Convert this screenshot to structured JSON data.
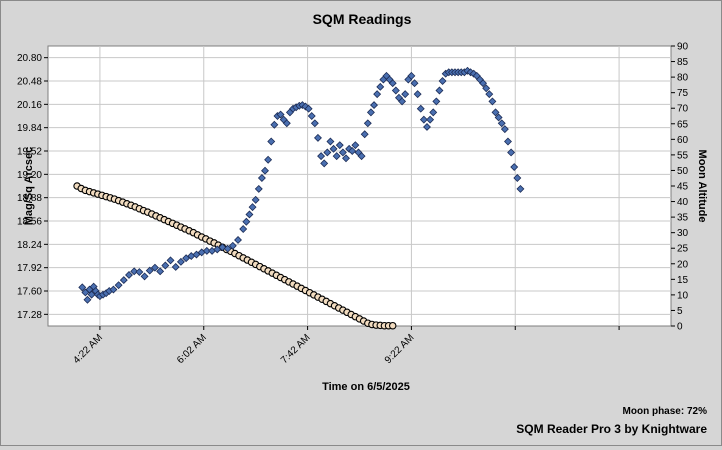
{
  "chart_data": {
    "type": "scatter",
    "title": "SQM Readings",
    "xlabel": "Time on 6/5/2025",
    "ylabel": "Mag/Sq Arcsec",
    "y2label": "Moon Altitude",
    "moon_phase_text": "Moon phase: 72%",
    "credit_text": "SQM Reader Pro 3 by Knightware",
    "x_ticks": [
      "4:22 AM",
      "6:02 AM",
      "7:42 AM",
      "9:22 AM",
      "",
      "",
      "",
      ""
    ],
    "y_ticks": [
      "17.28",
      "17.60",
      "17.92",
      "18.24",
      "18.56",
      "18.88",
      "19.20",
      "19.52",
      "19.84",
      "20.16",
      "20.48",
      "20.80"
    ],
    "y_range": [
      17.12,
      20.96
    ],
    "y2_ticks": [
      "0",
      "5",
      "10",
      "15",
      "20",
      "25",
      "30",
      "35",
      "40",
      "45",
      "50",
      "55",
      "60",
      "65",
      "70",
      "75",
      "80",
      "85",
      "90"
    ],
    "y2_range": [
      0,
      90
    ],
    "x_range_minutes": [
      212,
      812
    ],
    "grid": true,
    "series": [
      {
        "name": "",
        "axis": "left",
        "marker": "diamond",
        "color": "#4a6fb0",
        "x": [
          245,
          248,
          250,
          252,
          254,
          256,
          258,
          260,
          262,
          265,
          268,
          271,
          275,
          280,
          285,
          290,
          295,
          300,
          305,
          310,
          315,
          320,
          325,
          330,
          335,
          340,
          345,
          350,
          355,
          360,
          365,
          370,
          375,
          380,
          385,
          390,
          395,
          400,
          403,
          406,
          409,
          412,
          415,
          418,
          421,
          424,
          427,
          430,
          433,
          436,
          439,
          442,
          445,
          448,
          451,
          454,
          457,
          460,
          463,
          466,
          469,
          472,
          475,
          478,
          481,
          484,
          487,
          490,
          493,
          496,
          499,
          502,
          505,
          508,
          511,
          514,
          517,
          520,
          523,
          526,
          529,
          532,
          535,
          538,
          541,
          544,
          547,
          550,
          553,
          556,
          559,
          562,
          565,
          568,
          571,
          574,
          577,
          580,
          583,
          586,
          589,
          592,
          595,
          598,
          601,
          604,
          607,
          610,
          613,
          616,
          619,
          622,
          625,
          628,
          631,
          634,
          637,
          640,
          643,
          646,
          649,
          652,
          655,
          658,
          661,
          664,
          667
        ],
        "y": [
          17.65,
          17.58,
          17.48,
          17.62,
          17.55,
          17.66,
          17.6,
          17.55,
          17.53,
          17.55,
          17.57,
          17.6,
          17.62,
          17.68,
          17.75,
          17.82,
          17.87,
          17.86,
          17.8,
          17.88,
          17.92,
          17.87,
          17.95,
          18.02,
          17.93,
          18.0,
          18.05,
          18.08,
          18.1,
          18.13,
          18.15,
          18.15,
          18.17,
          18.2,
          18.18,
          18.22,
          18.3,
          18.45,
          18.55,
          18.65,
          18.75,
          18.85,
          19.0,
          19.15,
          19.25,
          19.4,
          19.65,
          19.88,
          20.0,
          20.02,
          19.95,
          19.9,
          20.05,
          20.1,
          20.12,
          20.14,
          20.15,
          20.13,
          20.1,
          20.0,
          19.9,
          19.7,
          19.45,
          19.35,
          19.5,
          19.65,
          19.55,
          19.45,
          19.6,
          19.5,
          19.42,
          19.55,
          19.52,
          19.6,
          19.5,
          19.45,
          19.75,
          19.9,
          20.05,
          20.15,
          20.3,
          20.4,
          20.5,
          20.55,
          20.5,
          20.45,
          20.35,
          20.25,
          20.2,
          20.3,
          20.5,
          20.55,
          20.45,
          20.3,
          20.1,
          19.95,
          19.85,
          19.95,
          20.05,
          20.2,
          20.35,
          20.48,
          20.58,
          20.6,
          20.6,
          20.6,
          20.6,
          20.6,
          20.6,
          20.62,
          20.6,
          20.58,
          20.55,
          20.5,
          20.45,
          20.38,
          20.3,
          20.2,
          20.05,
          19.98,
          19.9,
          19.82,
          19.65,
          19.5,
          19.3,
          19.15,
          19.0
        ]
      },
      {
        "name": "",
        "axis": "right",
        "marker": "circle",
        "color": "#f2dcc0",
        "x": [
          240,
          244,
          248,
          252,
          256,
          260,
          264,
          268,
          272,
          276,
          280,
          284,
          288,
          292,
          296,
          300,
          304,
          308,
          312,
          316,
          320,
          324,
          328,
          332,
          336,
          340,
          344,
          348,
          352,
          356,
          360,
          364,
          368,
          372,
          376,
          380,
          384,
          388,
          392,
          396,
          400,
          404,
          408,
          412,
          416,
          420,
          424,
          428,
          432,
          436,
          440,
          444,
          448,
          452,
          456,
          460,
          464,
          468,
          472,
          476,
          480,
          484,
          488,
          492,
          496,
          500,
          504,
          508,
          512,
          516,
          520,
          524,
          528,
          532,
          536,
          540,
          544
        ],
        "y": [
          45.0,
          44.2,
          43.6,
          43.2,
          42.8,
          42.4,
          42.0,
          41.6,
          41.2,
          40.8,
          40.3,
          39.8,
          39.3,
          38.8,
          38.3,
          37.7,
          37.1,
          36.6,
          36.0,
          35.4,
          34.8,
          34.2,
          33.6,
          33.0,
          32.4,
          31.8,
          31.2,
          30.6,
          30.0,
          29.3,
          28.6,
          28.0,
          27.3,
          26.7,
          26.0,
          25.3,
          24.6,
          24.0,
          23.3,
          22.6,
          21.9,
          21.2,
          20.5,
          19.8,
          19.1,
          18.4,
          17.7,
          17.0,
          16.3,
          15.6,
          14.9,
          14.2,
          13.5,
          12.8,
          12.1,
          11.4,
          10.7,
          10.0,
          9.3,
          8.6,
          7.9,
          7.2,
          6.5,
          5.8,
          5.1,
          4.4,
          3.7,
          3.0,
          2.3,
          1.6,
          0.9,
          0.5,
          0.3,
          0.2,
          0.1,
          0.1,
          0.1
        ]
      }
    ]
  }
}
